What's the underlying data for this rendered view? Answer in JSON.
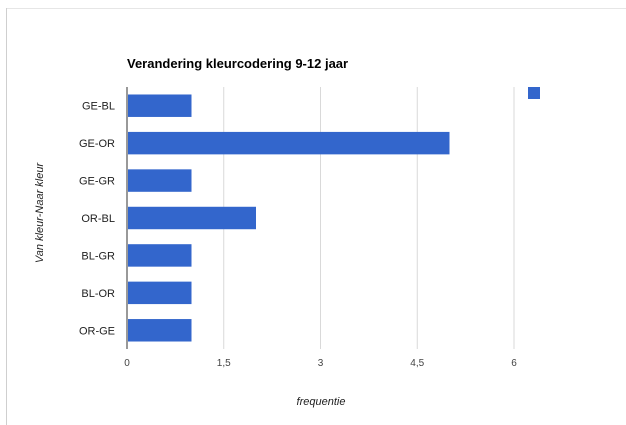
{
  "chart_data": {
    "type": "bar",
    "orientation": "horizontal",
    "title": "Verandering kleurcodering 9-12 jaar",
    "xlabel": "frequentie",
    "ylabel": "Van kleur-Naar kleur",
    "categories": [
      "GE-BL",
      "GE-OR",
      "GE-GR",
      "OR-BL",
      "BL-GR",
      "BL-OR",
      "OR-GE"
    ],
    "values": [
      1,
      5,
      1,
      2,
      1,
      1,
      1
    ],
    "xlim": [
      0,
      6
    ],
    "xticks": [
      "0",
      "1,5",
      "3",
      "4,5",
      "6"
    ],
    "grid": true,
    "legend": {
      "position": "top-right",
      "entries": [
        ""
      ]
    },
    "colors": {
      "bar": "#3366cc",
      "grid": "#d9d9d9"
    }
  }
}
